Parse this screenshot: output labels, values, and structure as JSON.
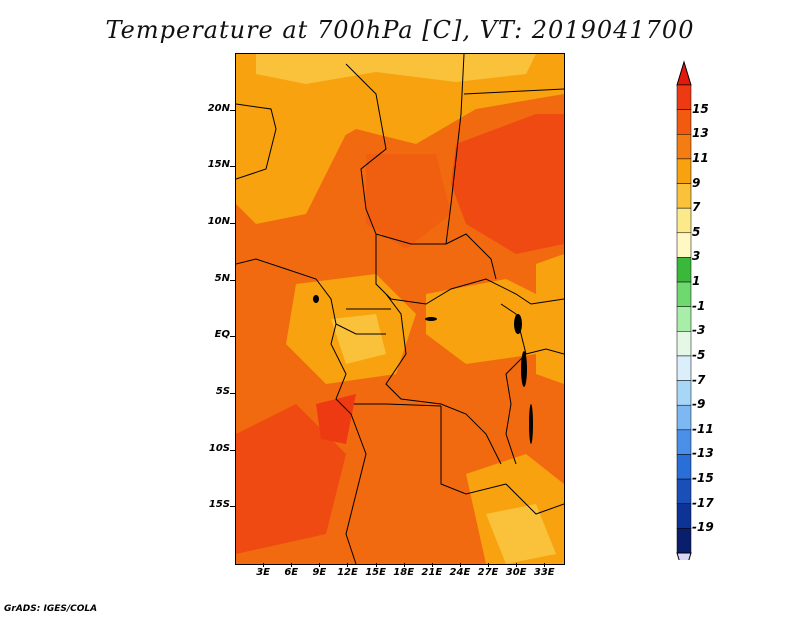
{
  "title": "Temperature at 700hPa [C], VT: 2019041700",
  "footer": "GrADS: IGES/COLA",
  "y_axis": {
    "labels": [
      "20N",
      "15N",
      "10N",
      "5N",
      "EQ",
      "5S",
      "10S",
      "15S"
    ],
    "lat_values": [
      20,
      15,
      10,
      5,
      0,
      -5,
      -10,
      -15
    ]
  },
  "x_axis": {
    "labels": [
      "3E",
      "6E",
      "9E",
      "12E",
      "15E",
      "18E",
      "21E",
      "24E",
      "27E",
      "30E",
      "33E"
    ],
    "lon_values": [
      3,
      6,
      9,
      12,
      15,
      18,
      21,
      24,
      27,
      30,
      33
    ]
  },
  "map_extent": {
    "lon_min": 0,
    "lon_max": 35,
    "lat_min": -20,
    "lat_max": 25
  },
  "colorbar": {
    "labels": [
      "15",
      "13",
      "11",
      "9",
      "7",
      "5",
      "3",
      "1",
      "-1",
      "-3",
      "-5",
      "-7",
      "-9",
      "-11",
      "-13",
      "-15",
      "-17",
      "-19"
    ],
    "colors": [
      "#ee3a12",
      "#f25a10",
      "#f57c12",
      "#f7a20e",
      "#fac23a",
      "#fbe98a",
      "#fff8c4",
      "#3ab83a",
      "#6fd86f",
      "#a8eea8",
      "#e5f7e5",
      "#dbeefb",
      "#a8d6f7",
      "#7db8f2",
      "#4a8fe8",
      "#2a6ed8",
      "#1a4fb8",
      "#0c3395",
      "#0a1e6e"
    ],
    "top_arrow_color": "#e21a0e",
    "bottom_arrow_color": "#d8d8f5"
  },
  "field_colors": {
    "base": "#f26a0f",
    "warm": "#ee4a12",
    "cool": "#f7a20e",
    "cooler": "#fac23a"
  }
}
